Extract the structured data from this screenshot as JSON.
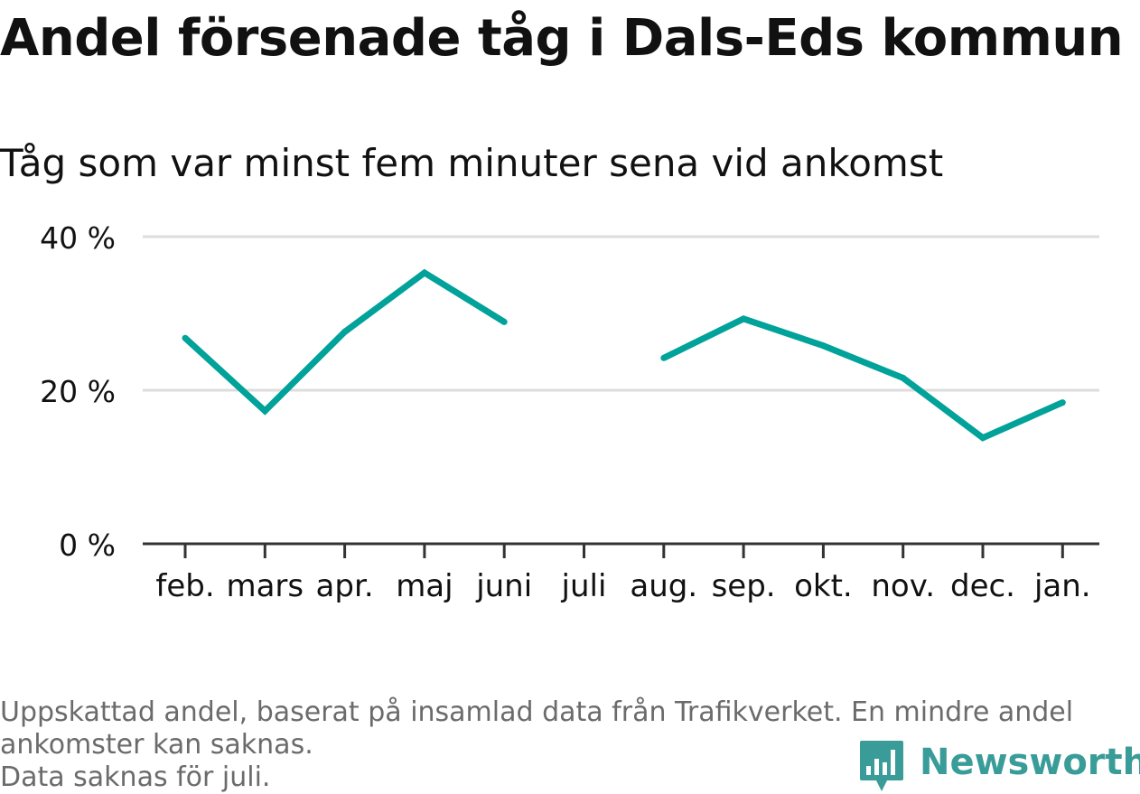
{
  "title": "Andel försenade tåg i Dals-Eds kommun",
  "subtitle": "Tåg som var minst fem minuter sena vid ankomst",
  "colors": {
    "line": "#00a29a",
    "grid": "#dddddd",
    "axis": "#333333",
    "text": "#111111",
    "footer": "#6b6b6b",
    "brand": "#3a9c98"
  },
  "chart_data": {
    "type": "line",
    "categories": [
      "feb.",
      "mars",
      "apr.",
      "maj",
      "juni",
      "juli",
      "aug.",
      "sep.",
      "okt.",
      "nov.",
      "dec.",
      "jan."
    ],
    "series": [
      {
        "values": [
          26.8,
          17.3,
          27.6,
          35.3,
          28.9,
          null,
          24.2,
          29.3,
          25.8,
          21.6,
          13.8,
          18.4
        ]
      }
    ],
    "yticks": [
      0,
      20,
      40
    ],
    "ytick_labels": [
      "0 %",
      "20 %",
      "40 %"
    ],
    "ylim": [
      0,
      40
    ],
    "grid": true,
    "legend": "none"
  },
  "footer": {
    "line1": "Uppskattad andel, baserat på insamlad data från Trafikverket. En mindre andel",
    "line2": "ankomster kan saknas.",
    "line3": "Data saknas för juli."
  },
  "brand": {
    "name": "Newsworthy",
    "icon": "newsworthy-chart-icon"
  }
}
